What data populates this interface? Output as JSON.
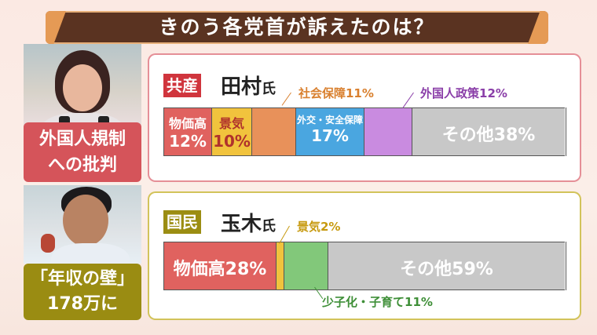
{
  "title": "きのう各党首が訴えたのは？",
  "politician1": {
    "party": "共産",
    "name": "田村",
    "suffix": "氏",
    "tag_line1": "外国人規制",
    "tag_line2": "への批判",
    "segments": [
      {
        "label": "物価高",
        "pct": "12%",
        "share": 12,
        "color": "#e0625f",
        "text_color": "#ffffff"
      },
      {
        "label": "景気",
        "pct": "10%",
        "share": 10,
        "color": "#f1c33d",
        "text_color": "#b0322c"
      },
      {
        "label": "",
        "pct": "",
        "share": 11,
        "color": "#e8915a",
        "text_color": "#ffffff"
      },
      {
        "label": "外交・安全保障",
        "pct": "17%",
        "share": 17,
        "color": "#4aa6e0",
        "text_color": "#ffffff"
      },
      {
        "label": "",
        "pct": "",
        "share": 12,
        "color": "#c98be0",
        "text_color": "#ffffff"
      },
      {
        "label": "その他38%",
        "pct": "",
        "share": 38,
        "color": "#c8c8c8",
        "text_color": "#ffffff"
      }
    ],
    "callouts": {
      "social": "社会保障11%",
      "foreign": "外国人政策12%"
    }
  },
  "politician2": {
    "party": "国民",
    "name": "玉木",
    "suffix": "氏",
    "tag_line1": "「年収の壁」",
    "tag_line2": "178万に",
    "segments": [
      {
        "label": "物価高28%",
        "share": 28,
        "color": "#e0625f",
        "text_color": "#ffffff"
      },
      {
        "label": "",
        "share": 2,
        "color": "#f1c33d",
        "text_color": "#ffffff"
      },
      {
        "label": "",
        "share": 11,
        "color": "#82c87a",
        "text_color": "#ffffff"
      },
      {
        "label": "その他59%",
        "share": 59,
        "color": "#c8c8c8",
        "text_color": "#ffffff"
      }
    ],
    "callouts": {
      "economy": "景気2%",
      "children": "少子化・子育て11%"
    }
  },
  "colors": {
    "callout_orange": "#d9802f",
    "callout_purple": "#8a3ea8",
    "callout_yellow": "#c79a10",
    "callout_green": "#3f8f38"
  }
}
